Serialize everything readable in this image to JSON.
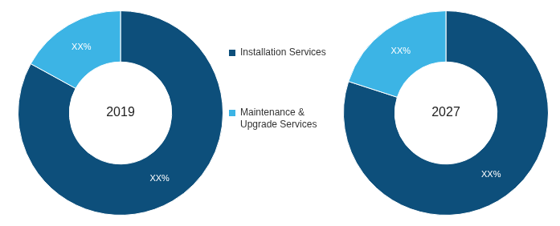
{
  "chart_data": [
    {
      "type": "doughnut",
      "title": "2019",
      "categories": [
        "Installation Services",
        "Maintenance & Upgrade Services"
      ],
      "values": [
        83,
        17
      ],
      "value_labels": [
        "XX%",
        "XX%"
      ],
      "colors": [
        "#0d4f7b",
        "#3cb4e5"
      ],
      "data_labels": true,
      "legend": "right"
    },
    {
      "type": "doughnut",
      "title": "2027",
      "categories": [
        "Installation Services",
        "Maintenance & Upgrade Services"
      ],
      "values": [
        80,
        20
      ],
      "value_labels": [
        "XX%",
        "XX%"
      ],
      "colors": [
        "#0d4f7b",
        "#3cb4e5"
      ],
      "data_labels": true
    }
  ]
}
